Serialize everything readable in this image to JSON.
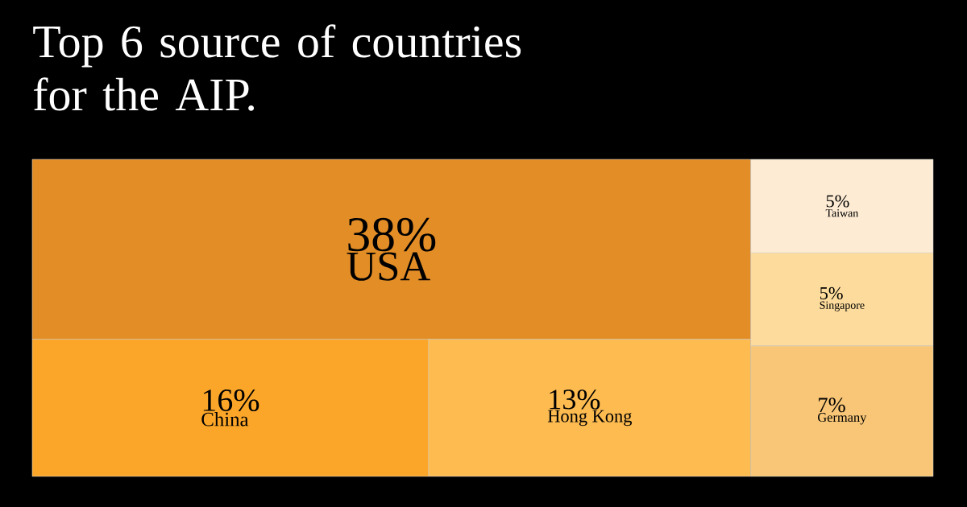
{
  "chart_data": {
    "type": "other",
    "title": "Top 6 source of countries for the AIP.",
    "categories": [
      "USA",
      "China",
      "Hong Kong",
      "Germany",
      "Singapore",
      "Taiwan"
    ],
    "values": [
      38,
      16,
      13,
      7,
      5,
      5
    ],
    "value_labels": [
      "38%",
      "16%",
      "13%",
      "7%",
      "5%",
      "5%"
    ],
    "colors": [
      "#e38d26",
      "#fca629",
      "#fdbb50",
      "#f8c676",
      "#fddb9c",
      "#fdebd3"
    ]
  }
}
